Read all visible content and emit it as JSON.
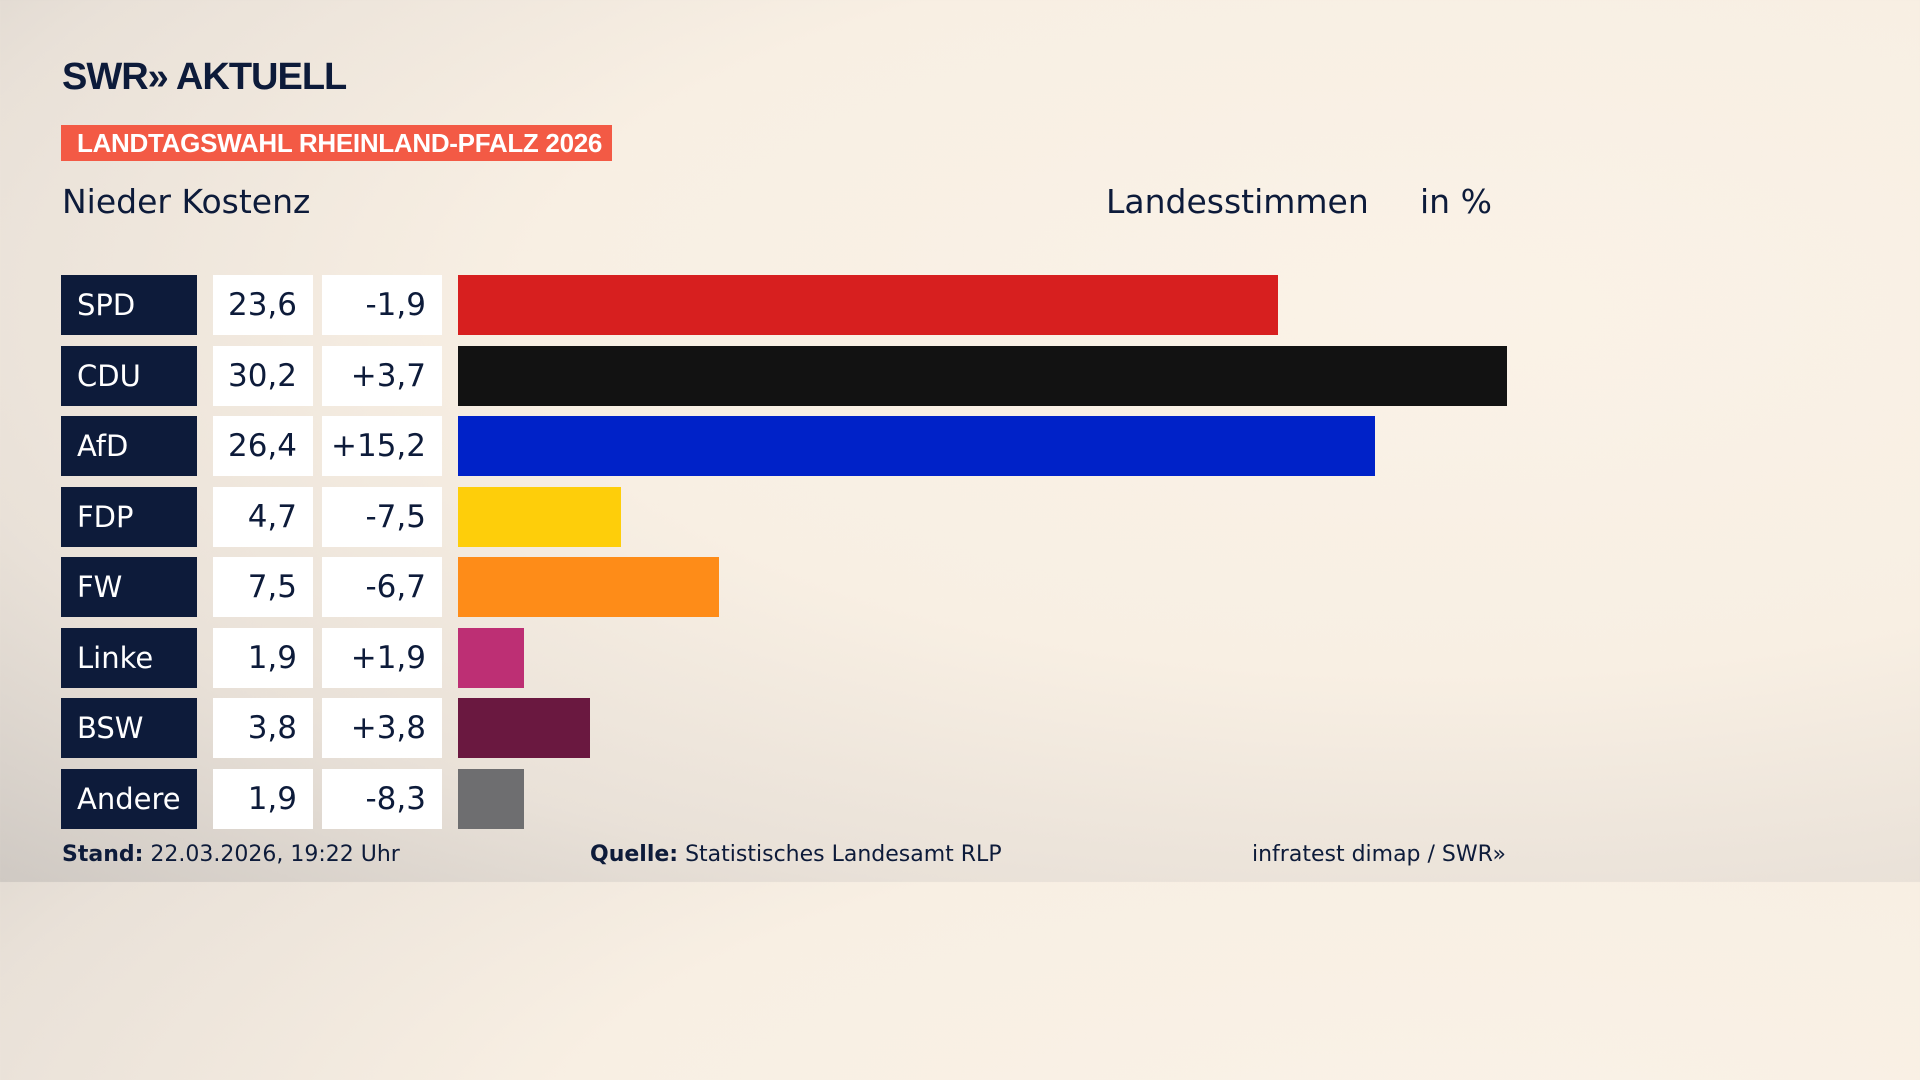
{
  "header": {
    "logo": "SWR» AKTUELL",
    "tag": "LANDTAGSWAHL RHEINLAND-PFALZ 2026",
    "location": "Nieder Kostenz",
    "vote_type": "Landesstimmen",
    "unit": "in %"
  },
  "chart_data": {
    "type": "bar",
    "orientation": "horizontal",
    "xlim": [
      0,
      30.2
    ],
    "categories": [
      "SPD",
      "CDU",
      "AfD",
      "FDP",
      "FW",
      "Linke",
      "BSW",
      "Andere"
    ],
    "values": [
      23.6,
      30.2,
      26.4,
      4.7,
      7.5,
      1.9,
      3.8,
      1.9
    ],
    "value_labels": [
      "23,6",
      "30,2",
      "26,4",
      "4,7",
      "7,5",
      "1,9",
      "3,8",
      "1,9"
    ],
    "diff_labels": [
      "-1,9",
      "+3,7",
      "+15,2",
      "-7,5",
      "-6,7",
      "+1,9",
      "+3,8",
      "-8,3"
    ],
    "colors": [
      "#d71f1f",
      "#121212",
      "#0022c8",
      "#fece0a",
      "#fe8c18",
      "#bd2f74",
      "#6a1840",
      "#6e6e70"
    ]
  },
  "footer": {
    "stand_label": "Stand:",
    "stand_value": "22.03.2026, 19:22 Uhr",
    "source_label": "Quelle:",
    "source_value": "Statistisches Landesamt RLP",
    "credit": "infratest dimap / SWR»"
  }
}
